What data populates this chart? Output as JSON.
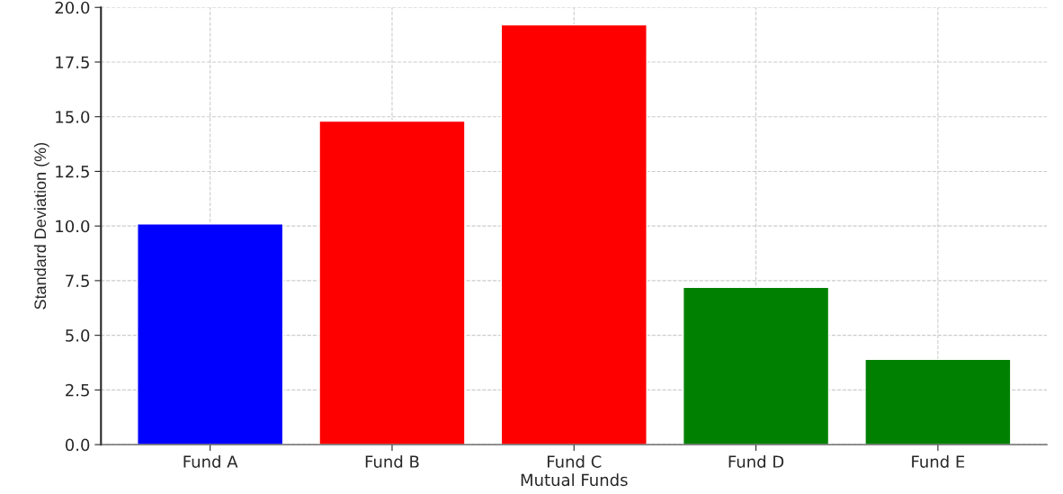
{
  "chart_data": {
    "type": "bar",
    "xlabel": "Mutual Funds",
    "ylabel": "Standard Deviation (%)",
    "categories": [
      "Fund A",
      "Fund B",
      "Fund C",
      "Fund D",
      "Fund E"
    ],
    "values": [
      10.1,
      14.8,
      19.2,
      7.2,
      3.9
    ],
    "colors": [
      "#0000ff",
      "#ff0000",
      "#ff0000",
      "#008000",
      "#008000"
    ],
    "ylim": [
      0,
      20
    ],
    "yticks": [
      {
        "value": 0,
        "label": "0.0"
      },
      2.5,
      {
        "value": 5,
        "label": "5.0"
      },
      7.5,
      {
        "value": 10,
        "label": "10.0"
      },
      12.5,
      {
        "value": 15,
        "label": "15.0"
      },
      17.5,
      {
        "value": 20,
        "label": "20.0"
      }
    ],
    "grid": true
  }
}
